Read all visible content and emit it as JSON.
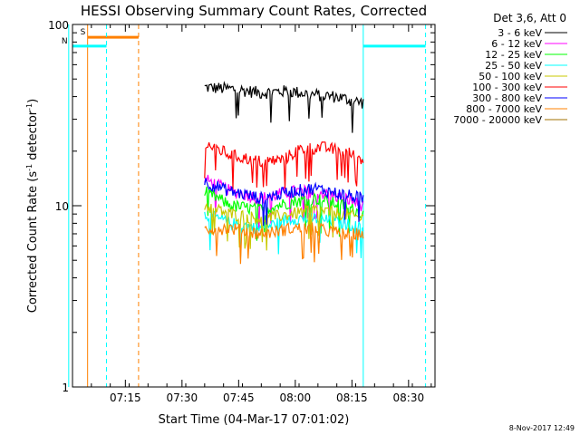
{
  "chart_data": {
    "type": "line",
    "title": "HESSI Observing Summary Count Rates, Corrected",
    "xlabel": "Start Time (04-Mar-17 07:01:02)",
    "ylabel_main": "Corrected Count Rate (s",
    "ylabel_sup1": "-1",
    "ylabel_mid": " detector",
    "ylabel_sup2": "-1",
    "ylabel_end": ")",
    "footer": "8-Nov-2017 12:49",
    "x_axis": {
      "range_minutes": [
        0,
        96
      ],
      "ticks": [
        {
          "minute": 14,
          "label": "07:15"
        },
        {
          "minute": 29,
          "label": "07:30"
        },
        {
          "minute": 44,
          "label": "07:45"
        },
        {
          "minute": 59,
          "label": "08:00"
        },
        {
          "minute": 74,
          "label": "08:15"
        },
        {
          "minute": 89,
          "label": "08:30"
        }
      ]
    },
    "y_axis": {
      "scale": "log",
      "range": [
        1,
        100
      ],
      "ticks": [
        {
          "value": 1,
          "label": "1"
        },
        {
          "value": 10,
          "label": "10"
        },
        {
          "value": 100,
          "label": "100"
        }
      ]
    },
    "legend": {
      "header": "Det 3,6, Att 0",
      "position": "right"
    },
    "data_window_minutes": [
      35,
      77
    ],
    "series": [
      {
        "name": "3 - 6 keV",
        "color": "#000000",
        "segments": [
          [
            35,
            45
          ],
          [
            43,
            44
          ],
          [
            50,
            42
          ],
          [
            57,
            43
          ],
          [
            64,
            41
          ],
          [
            70,
            40
          ],
          [
            74,
            38
          ],
          [
            77,
            37
          ]
        ]
      },
      {
        "name": "6 - 12 keV",
        "color": "#ff00ff",
        "segments": [
          [
            35,
            14
          ],
          [
            42,
            12
          ],
          [
            50,
            11
          ],
          [
            58,
            12
          ],
          [
            64,
            12
          ],
          [
            72,
            11
          ],
          [
            77,
            10
          ]
        ]
      },
      {
        "name": "12 - 25 keV",
        "color": "#00ff00",
        "segments": [
          [
            35,
            12
          ],
          [
            42,
            10
          ],
          [
            50,
            9.5
          ],
          [
            58,
            10.5
          ],
          [
            64,
            11
          ],
          [
            72,
            10
          ],
          [
            77,
            9
          ]
        ]
      },
      {
        "name": "25 - 50 keV",
        "color": "#00ffff",
        "segments": [
          [
            35,
            9
          ],
          [
            42,
            8
          ],
          [
            50,
            7.5
          ],
          [
            58,
            8.5
          ],
          [
            64,
            8.5
          ],
          [
            72,
            8
          ],
          [
            77,
            7.5
          ]
        ]
      },
      {
        "name": "50 - 100 keV",
        "color": "#c8c800",
        "segments": [
          [
            35,
            10
          ],
          [
            42,
            9
          ],
          [
            50,
            8.5
          ],
          [
            58,
            9
          ],
          [
            64,
            9.5
          ],
          [
            72,
            9
          ],
          [
            77,
            8.5
          ]
        ]
      },
      {
        "name": "100 - 300 keV",
        "color": "#ff0000",
        "segments": [
          [
            35,
            22
          ],
          [
            42,
            19
          ],
          [
            50,
            17.5
          ],
          [
            56,
            18
          ],
          [
            60,
            20.5
          ],
          [
            66,
            21
          ],
          [
            72,
            20
          ],
          [
            77,
            18
          ]
        ]
      },
      {
        "name": "300 - 800 keV",
        "color": "#0000ff",
        "segments": [
          [
            35,
            13.5
          ],
          [
            42,
            12
          ],
          [
            50,
            11
          ],
          [
            58,
            12
          ],
          [
            64,
            12.5
          ],
          [
            72,
            11.5
          ],
          [
            77,
            11
          ]
        ]
      },
      {
        "name": "800 - 7000 keV",
        "color": "#ff8000",
        "segments": [
          [
            35,
            7.5
          ],
          [
            42,
            7.5
          ],
          [
            50,
            7
          ],
          [
            58,
            7.5
          ],
          [
            64,
            7.5
          ],
          [
            72,
            7
          ],
          [
            77,
            7
          ]
        ]
      },
      {
        "name": "7000 - 20000 keV",
        "color": "#a07000",
        "segments": []
      }
    ],
    "flags": [
      {
        "label": "S",
        "color": "#ff8000",
        "start_minute": 4,
        "end_minute": 17.5,
        "level": 85,
        "start_line_style": "solid",
        "end_line_style": "dashed"
      },
      {
        "label": "N",
        "color": "#00ffff",
        "start_minute": -1,
        "end_minute": 9,
        "level": 76,
        "start_line_style": "solid",
        "end_line_style": "dashed"
      },
      {
        "label": "",
        "color": "#00ffff",
        "start_minute": 77,
        "end_minute": 93.5,
        "level": 76,
        "start_line_style": "solid",
        "end_line_style": "dashed"
      }
    ]
  }
}
